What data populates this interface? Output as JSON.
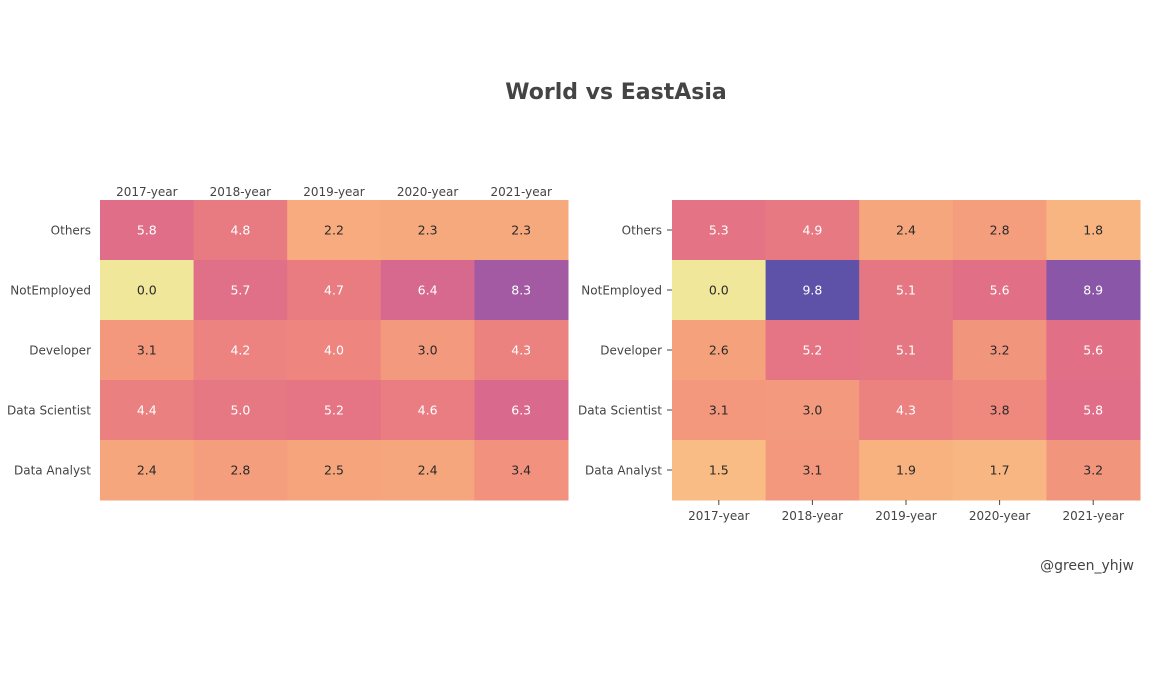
{
  "title": "World vs EastAsia",
  "credit": "@green_yhjw",
  "colorscale": [
    "#f0e79a",
    "#f9c386",
    "#f6a57c",
    "#f08b7e",
    "#e77982",
    "#dd6a8b",
    "#c46099",
    "#9a58a6",
    "#5e52a8"
  ],
  "chart_data": [
    {
      "type": "heatmap",
      "name": "World",
      "x": [
        "2017-year",
        "2018-year",
        "2019-year",
        "2020-year",
        "2021-year"
      ],
      "y": [
        "Others",
        "NotEmployed",
        "Developer",
        "Data Scientist",
        "Data Analyst"
      ],
      "z": [
        [
          5.8,
          4.8,
          2.2,
          2.3,
          2.3
        ],
        [
          0.0,
          5.7,
          4.7,
          6.4,
          8.3
        ],
        [
          3.1,
          4.2,
          4.0,
          3.0,
          4.3
        ],
        [
          4.4,
          5.0,
          5.2,
          4.6,
          6.3
        ],
        [
          2.4,
          2.8,
          2.5,
          2.4,
          3.4
        ]
      ],
      "zrange": [
        0,
        9.8
      ],
      "x_axis_position": "top"
    },
    {
      "type": "heatmap",
      "name": "EastAsia",
      "x": [
        "2017-year",
        "2018-year",
        "2019-year",
        "2020-year",
        "2021-year"
      ],
      "y": [
        "Others",
        "NotEmployed",
        "Developer",
        "Data Scientist",
        "Data Analyst"
      ],
      "z": [
        [
          5.3,
          4.9,
          2.4,
          2.8,
          1.8
        ],
        [
          0.0,
          9.8,
          5.1,
          5.6,
          8.9
        ],
        [
          2.6,
          5.2,
          5.1,
          3.2,
          5.6
        ],
        [
          3.1,
          3.0,
          4.3,
          3.8,
          5.8
        ],
        [
          1.5,
          3.1,
          1.9,
          1.7,
          3.2
        ]
      ],
      "zrange": [
        0,
        9.8
      ],
      "x_axis_position": "bottom"
    }
  ]
}
